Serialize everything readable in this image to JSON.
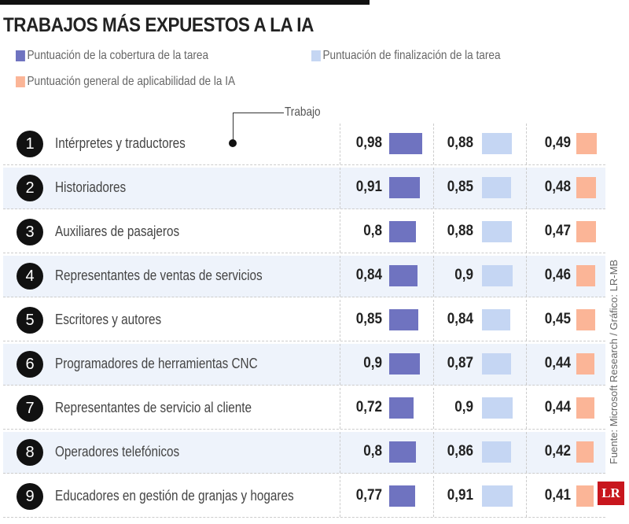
{
  "chart_data": {
    "type": "table",
    "title": "TRABAJOS MÁS EXPUESTOS A LA IA",
    "legend": [
      {
        "name": "Puntuación de la cobertura de la tarea",
        "color": "#6f73c0"
      },
      {
        "name": "Puntuación de finalización de la tarea",
        "color": "#c5d6f3"
      },
      {
        "name": "Puntuación general de aplicabilidad de la IA",
        "color": "#fbb597"
      }
    ],
    "callout": "Trabajo",
    "rows": [
      {
        "rank": "1",
        "job": "Intérpretes y traductores",
        "cov": "0,98",
        "fin": "0,88",
        "app": "0,49"
      },
      {
        "rank": "2",
        "job": "Historiadores",
        "cov": "0,91",
        "fin": "0,85",
        "app": "0,48"
      },
      {
        "rank": "3",
        "job": "Auxiliares de pasajeros",
        "cov": "0,8",
        "fin": "0,88",
        "app": "0,47"
      },
      {
        "rank": "4",
        "job": "Representantes de ventas de servicios",
        "cov": "0,84",
        "fin": "0,9",
        "app": "0,46"
      },
      {
        "rank": "5",
        "job": "Escritores y autores",
        "cov": "0,85",
        "fin": "0,84",
        "app": "0,45"
      },
      {
        "rank": "6",
        "job": "Programadores de herramientas CNC",
        "cov": "0,9",
        "fin": "0,87",
        "app": "0,44"
      },
      {
        "rank": "7",
        "job": "Representantes de servicio al cliente",
        "cov": "0,72",
        "fin": "0,9",
        "app": "0,44"
      },
      {
        "rank": "8",
        "job": "Operadores telefónicos",
        "cov": "0,8",
        "fin": "0,86",
        "app": "0,42"
      },
      {
        "rank": "9",
        "job": "Educadores en gestión de granjas y hogares",
        "cov": "0,77",
        "fin": "0,91",
        "app": "0,41"
      }
    ],
    "source": "Fuente: Microsoft Research / Gráfico: LR-MB",
    "logo": "LR"
  }
}
